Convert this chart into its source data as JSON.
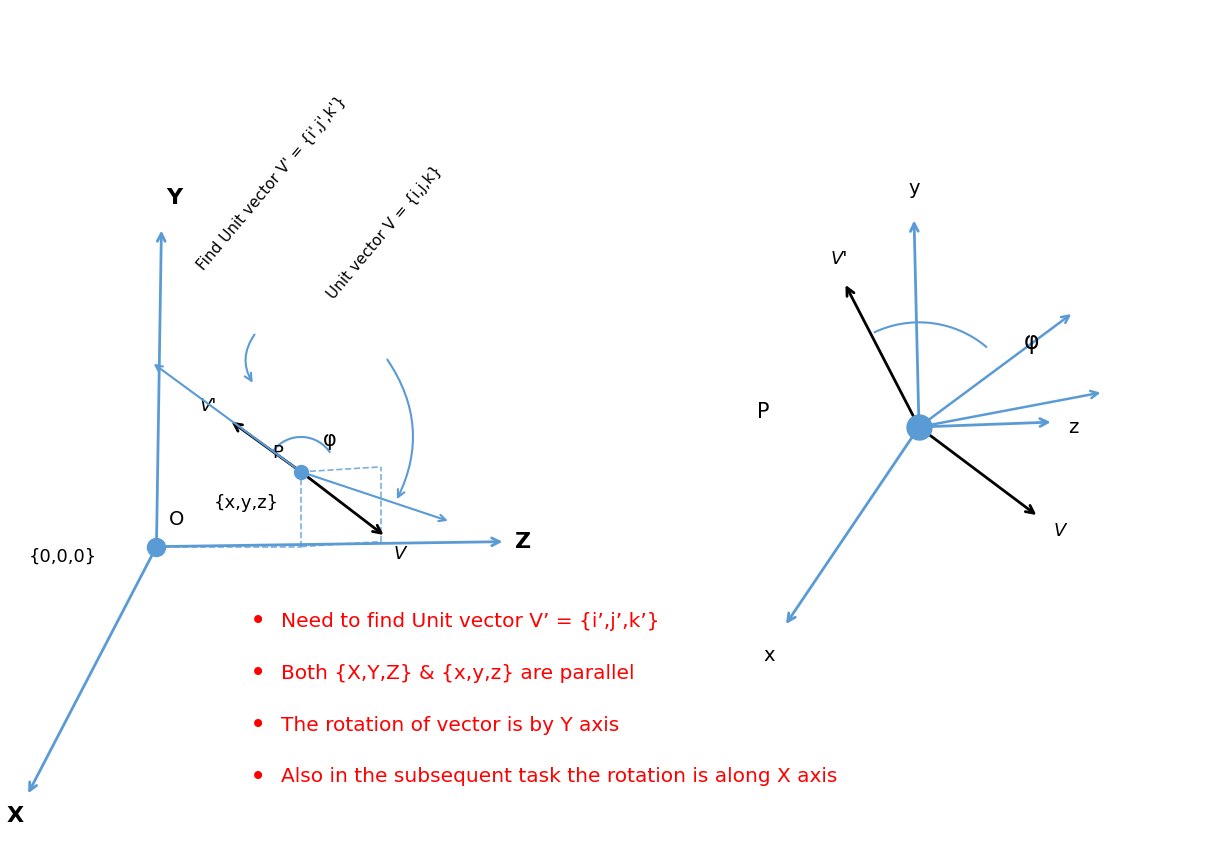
{
  "bg_color": "#ffffff",
  "axis_color": "#5b9bd5",
  "black_color": "#000000",
  "dot_color": "#5b9bd5",
  "red_color": "#ff0000",
  "bullet_points": [
    "Need to find Unit vector V’ = {i’,j’,k’}",
    "Both {X,Y,Z} & {x,y,z} are parallel",
    "The rotation of vector is by Y axis",
    "Also in the subsequent task the rotation is along X axis"
  ],
  "fig_w": 12.08,
  "fig_h": 8.57,
  "dpi": 100
}
